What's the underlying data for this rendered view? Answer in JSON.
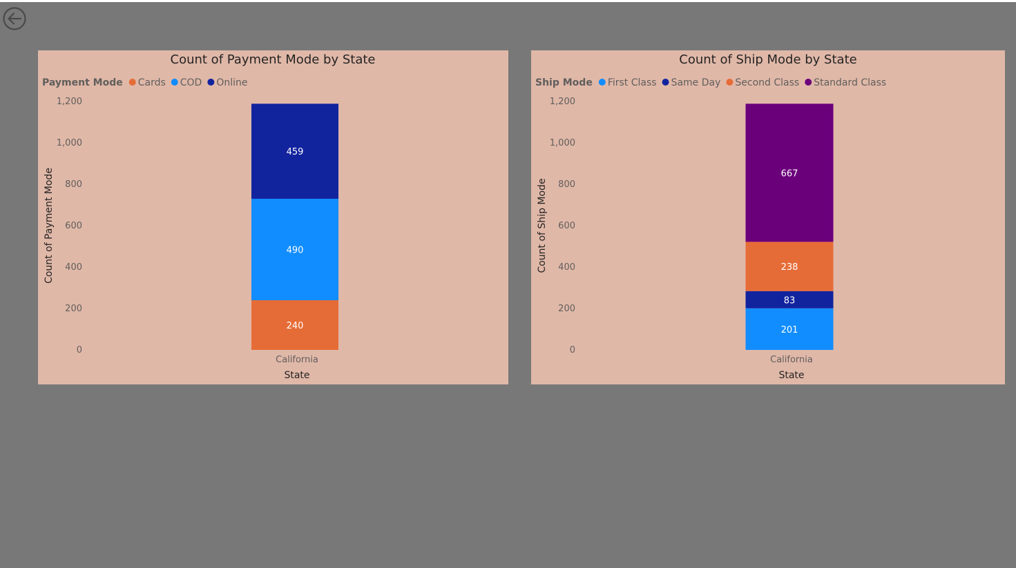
{
  "page": {
    "back_icon": "arrow-left-circle-icon"
  },
  "charts": [
    {
      "id": "payment",
      "title": "Count of Payment Mode by State",
      "legend_title": "Payment Mode",
      "xlabel": "State",
      "ylabel": "Count of Payment Mode",
      "y_ticks": [
        "1,200",
        "1,000",
        "800",
        "600",
        "400",
        "200",
        "0"
      ]
    },
    {
      "id": "ship",
      "title": "Count of Ship Mode by State",
      "legend_title": "Ship Mode",
      "xlabel": "State",
      "ylabel": "Count of Ship Mode",
      "y_ticks": [
        "1,200",
        "1,000",
        "800",
        "600",
        "400",
        "200",
        "0"
      ]
    }
  ],
  "chart_data": [
    {
      "type": "bar",
      "stacked": true,
      "title": "Count of Payment Mode by State",
      "xlabel": "State",
      "ylabel": "Count of Payment Mode",
      "categories": [
        "California"
      ],
      "ylim": [
        0,
        1200
      ],
      "legend_position": "top-left",
      "series": [
        {
          "name": "Cards",
          "color": "#e66c37",
          "values": [
            240
          ]
        },
        {
          "name": "COD",
          "color": "#118dff",
          "values": [
            490
          ]
        },
        {
          "name": "Online",
          "color": "#12239e",
          "values": [
            459
          ]
        }
      ]
    },
    {
      "type": "bar",
      "stacked": true,
      "title": "Count of Ship Mode by State",
      "xlabel": "State",
      "ylabel": "Count of Ship Mode",
      "categories": [
        "California"
      ],
      "ylim": [
        0,
        1200
      ],
      "legend_position": "top-left",
      "series": [
        {
          "name": "First Class",
          "color": "#118dff",
          "values": [
            201
          ]
        },
        {
          "name": "Same Day",
          "color": "#12239e",
          "values": [
            83
          ]
        },
        {
          "name": "Second Class",
          "color": "#e66c37",
          "values": [
            238
          ]
        },
        {
          "name": "Standard Class",
          "color": "#6b007b",
          "values": [
            667
          ]
        }
      ]
    }
  ]
}
